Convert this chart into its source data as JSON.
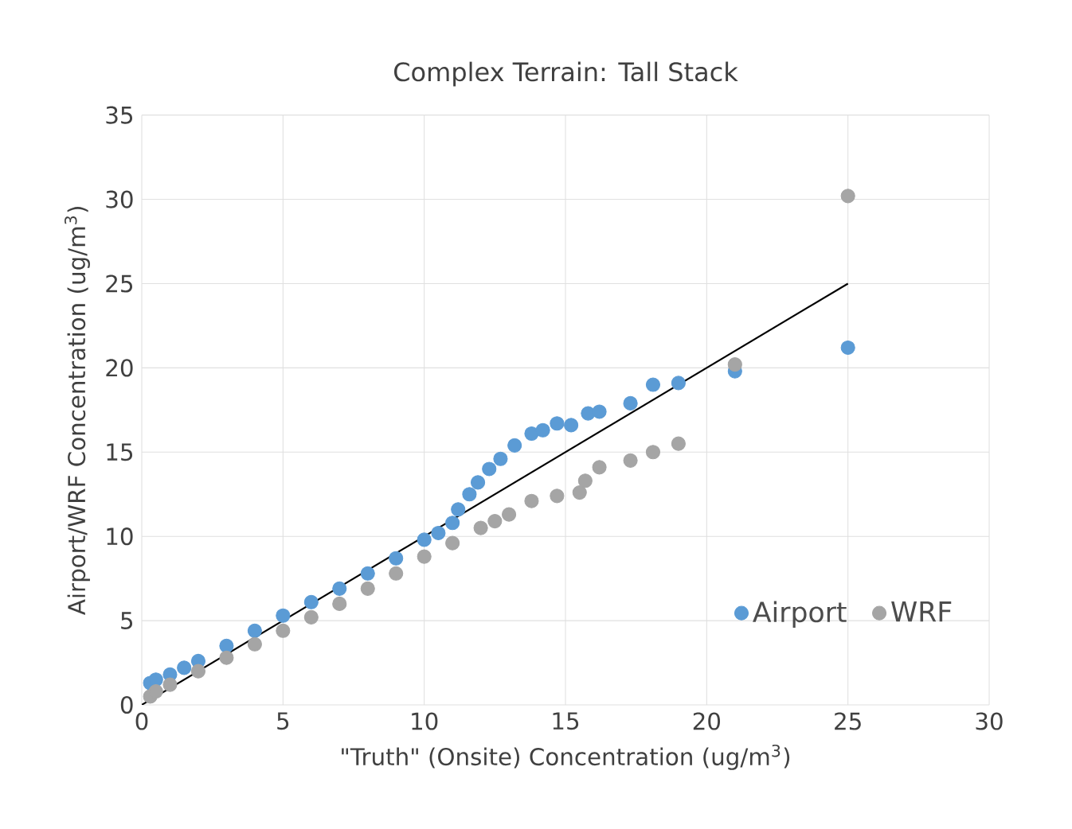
{
  "chart_data": {
    "type": "scatter",
    "title": "Complex Terrain: Tall Stack",
    "xlabel": "\"Truth\" (Onsite) Concentration (ug/m$^{3}$)",
    "ylabel": "Airport/WRF Concentration (ug/m$^{3}$)",
    "xlim": [
      0,
      30
    ],
    "xticks": [
      0,
      5,
      10,
      15,
      20,
      25,
      30
    ],
    "ylim": [
      0,
      35
    ],
    "yticks": [
      0,
      5,
      10,
      15,
      20,
      25,
      30,
      35
    ],
    "grid": true,
    "legend": "bottom right",
    "marker": "circle",
    "series": [
      {
        "name": "Airport",
        "color": "#5b9bd5",
        "x": [
          0.3,
          0.5,
          1,
          1.5,
          2,
          3,
          4,
          5,
          6,
          7,
          8,
          9,
          10,
          10.5,
          11,
          11.2,
          11.6,
          11.9,
          12.3,
          12.7,
          13.2,
          13.8,
          14.2,
          14.7,
          15.2,
          15.8,
          16.2,
          17.3,
          18.1,
          19,
          21,
          25
        ],
        "values": [
          1.3,
          1.5,
          1.8,
          2.2,
          2.6,
          3.5,
          4.4,
          5.3,
          6.1,
          6.9,
          7.8,
          8.7,
          9.8,
          10.2,
          10.8,
          11.6,
          12.5,
          13.2,
          14.0,
          14.6,
          15.4,
          16.1,
          16.3,
          16.7,
          16.6,
          17.3,
          17.4,
          17.9,
          19.0,
          19.1,
          19.8,
          21.2
        ]
      },
      {
        "name": "WRF",
        "color": "#a5a5a5",
        "x": [
          0.3,
          0.5,
          1,
          2,
          3,
          4,
          5,
          6,
          7,
          8,
          9,
          10,
          11,
          12,
          12.5,
          13,
          13.8,
          14.7,
          15.5,
          15.7,
          16.2,
          17.3,
          18.1,
          19,
          21,
          25
        ],
        "values": [
          0.5,
          0.8,
          1.2,
          2.0,
          2.8,
          3.6,
          4.4,
          5.2,
          6.0,
          6.9,
          7.8,
          8.8,
          9.6,
          10.5,
          10.9,
          11.3,
          12.1,
          12.4,
          12.6,
          13.3,
          14.1,
          14.5,
          15.0,
          15.5,
          20.2,
          30.2
        ]
      },
      {
        "type": "line",
        "color": "#000000",
        "marker": "none",
        "x": [
          0,
          25
        ],
        "values": [
          0,
          25
        ]
      }
    ]
  }
}
